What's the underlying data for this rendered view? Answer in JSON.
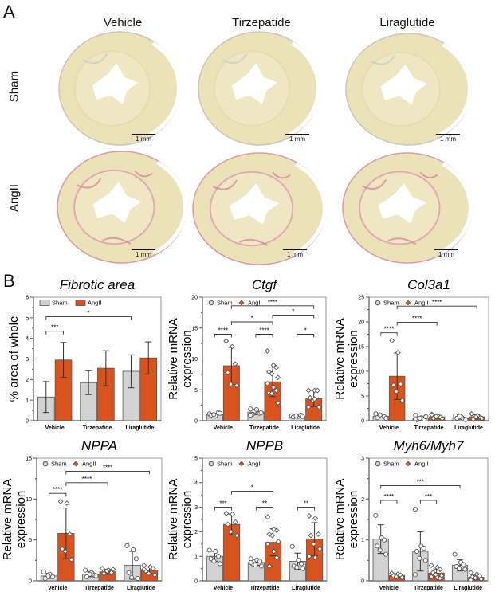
{
  "panel_a": {
    "label": "A",
    "columns": [
      "Vehicle",
      "Tirzepatide",
      "Liraglutide"
    ],
    "rows": [
      "Sham",
      "AngII"
    ],
    "scale_bar": "1 mm"
  },
  "panel_b": {
    "label": "B"
  },
  "colors": {
    "sham": "#d2d2d2",
    "angii": "#d9531e",
    "axis": "#555555"
  },
  "chart_data": [
    {
      "type": "bar",
      "title": "Fibrotic area",
      "ylabel": "% area of whole",
      "categories": [
        "Vehicle",
        "Tirzepatide",
        "Liraglutide"
      ],
      "legend": [
        "Sham",
        "AngII"
      ],
      "legend_placement": "top-left",
      "marker": "square",
      "ylim": [
        0,
        6
      ],
      "yticks": [
        "0",
        "1",
        "2",
        "3",
        "4",
        "5",
        "6"
      ],
      "series": [
        {
          "name": "Sham",
          "values": [
            1.15,
            1.85,
            2.4
          ],
          "sd": [
            0.75,
            0.58,
            0.8
          ],
          "points": [
            [],
            [],
            []
          ]
        },
        {
          "name": "AngII",
          "values": [
            2.95,
            2.55,
            3.05
          ],
          "sd": [
            0.85,
            0.85,
            0.78
          ],
          "points": [
            [],
            [],
            []
          ]
        }
      ],
      "brackets": [
        {
          "bars": [
            0,
            1
          ],
          "y": 4.35,
          "label": "***"
        },
        {
          "bars": [
            0,
            4
          ],
          "y": 5.05,
          "label": "*"
        }
      ]
    },
    {
      "type": "bar",
      "title": "Ctgf",
      "ylabel": "Relative mRNA expression",
      "categories": [
        "Vehicle",
        "Tirzepatide",
        "Liraglutide"
      ],
      "legend": [
        "Sham",
        "AngII"
      ],
      "legend_placement": "top-left",
      "marker": "circle",
      "ylim": [
        0,
        20
      ],
      "yticks": [
        "0",
        "5",
        "10",
        "15",
        "20"
      ],
      "series": [
        {
          "name": "Sham",
          "values": [
            1.0,
            1.4,
            0.7
          ],
          "sd": [
            0.2,
            0.4,
            0.15
          ],
          "points": [
            [
              1.1,
              0.8,
              1.3,
              0.9,
              1.0,
              1.2
            ],
            [
              1.9,
              1.5,
              1.2,
              1.0,
              1.6,
              1.3,
              0.9,
              1.8
            ],
            [
              0.8,
              0.7,
              0.9,
              0.6,
              0.8,
              0.7
            ]
          ]
        },
        {
          "name": "AngII",
          "values": [
            8.9,
            6.3,
            3.6
          ],
          "sd": [
            3.0,
            2.4,
            1.3
          ],
          "points": [
            [
              12.9,
              12.0,
              9.2,
              7.8,
              5.9,
              5.7
            ],
            [
              11.3,
              9.0,
              8.6,
              7.9,
              7.6,
              7.0,
              6.0,
              5.4,
              4.9,
              4.5,
              4.4,
              2.9
            ],
            [
              4.9,
              4.9,
              4.9,
              3.7,
              3.3,
              2.2,
              2.2,
              3.5
            ]
          ]
        }
      ],
      "brackets": [
        {
          "bars": [
            0,
            1
          ],
          "y": 14.0,
          "label": "****"
        },
        {
          "bars": [
            2,
            3
          ],
          "y": 14.0,
          "label": "****"
        },
        {
          "bars": [
            4,
            5
          ],
          "y": 14.0,
          "label": "*"
        },
        {
          "bars": [
            1,
            3
          ],
          "y": 16.0,
          "label": "*"
        },
        {
          "bars": [
            3,
            5
          ],
          "y": 17.1,
          "label": "*"
        },
        {
          "bars": [
            1,
            5
          ],
          "y": 18.6,
          "label": "****"
        }
      ]
    },
    {
      "type": "bar",
      "title": "Col3a1",
      "ylabel": "Relative mRNA expression",
      "categories": [
        "Vehicle",
        "Tirzepatide",
        "Liraglutide"
      ],
      "legend": [
        "Sham",
        "AngII"
      ],
      "legend_placement": "top-left",
      "marker": "circle",
      "ylim": [
        0,
        25
      ],
      "yticks": [
        "0",
        "5",
        "10",
        "15",
        "20",
        "25"
      ],
      "series": [
        {
          "name": "Sham",
          "values": [
            0.9,
            0.5,
            0.6
          ],
          "sd": [
            0.3,
            0.3,
            0.3
          ],
          "points": [
            [
              1.4,
              1.0,
              0.8,
              0.6,
              1.2,
              0.5
            ],
            [
              1.1,
              0.6,
              0.3,
              0.2,
              0.5,
              0.8,
              0.4
            ],
            [
              1.0,
              0.7,
              0.3,
              0.5,
              0.9,
              0.2
            ]
          ]
        },
        {
          "name": "AngII",
          "values": [
            9.0,
            0.8,
            0.8
          ],
          "sd": [
            4.7,
            0.35,
            0.4
          ],
          "points": [
            [
              16.2,
              13.8,
              7.4,
              7.2,
              5.9,
              4.1
            ],
            [
              1.3,
              1.0,
              0.7,
              0.5,
              0.9,
              0.4,
              1.2
            ],
            [
              1.4,
              1.0,
              0.6,
              0.3,
              0.8,
              0.5
            ]
          ]
        }
      ],
      "brackets": [
        {
          "bars": [
            0,
            1
          ],
          "y": 17.8,
          "label": "****"
        },
        {
          "bars": [
            1,
            3
          ],
          "y": 19.9,
          "label": "****"
        },
        {
          "bars": [
            1,
            5
          ],
          "y": 23.2,
          "label": "****"
        }
      ]
    },
    {
      "type": "bar",
      "title": "NPPA",
      "ylabel": "Relative mRNA expression",
      "categories": [
        "Vehicle",
        "Tirzepatide",
        "Liraglutide"
      ],
      "legend": [
        "Sham",
        "AngII"
      ],
      "legend_placement": "top-left",
      "marker": "circle",
      "ylim": [
        0,
        15
      ],
      "yticks": [
        "0",
        "5",
        "10",
        "15"
      ],
      "series": [
        {
          "name": "Sham",
          "values": [
            0.6,
            0.8,
            1.9
          ],
          "sd": [
            0.3,
            0.3,
            1.7
          ],
          "points": [
            [
              1.1,
              0.8,
              0.5,
              0.3,
              0.6
            ],
            [
              1.3,
              1.0,
              0.7,
              0.5,
              0.8,
              0.6
            ],
            [
              4.3,
              3.8,
              2.7,
              1.0,
              0.4,
              0.3
            ]
          ]
        },
        {
          "name": "AngII",
          "values": [
            5.8,
            1.1,
            1.3
          ],
          "sd": [
            3.1,
            0.3,
            0.4
          ],
          "points": [
            [
              9.7,
              9.5,
              5.7,
              3.9,
              3.6,
              2.6
            ],
            [
              1.5,
              1.3,
              1.0,
              0.9,
              1.2,
              1.4
            ],
            [
              1.9,
              1.7,
              1.5,
              1.2,
              0.9,
              0.7,
              1.4
            ]
          ]
        }
      ],
      "brackets": [
        {
          "bars": [
            0,
            1
          ],
          "y": 10.7,
          "label": "****"
        },
        {
          "bars": [
            1,
            3
          ],
          "y": 12.0,
          "label": "****"
        },
        {
          "bars": [
            1,
            5
          ],
          "y": 13.4,
          "label": "****"
        }
      ]
    },
    {
      "type": "bar",
      "title": "NPPB",
      "ylabel": "Relative mRNA expression",
      "categories": [
        "Vehicle",
        "Tirzepatide",
        "Liraglutide"
      ],
      "legend": [
        "Sham",
        "AngII"
      ],
      "legend_placement": "top-left",
      "marker": "circle",
      "ylim": [
        0,
        5
      ],
      "yticks": [
        "0",
        "1",
        "2",
        "3",
        "4",
        "5"
      ],
      "series": [
        {
          "name": "Sham",
          "values": [
            1.0,
            0.75,
            0.8
          ],
          "sd": [
            0.2,
            0.12,
            0.33
          ],
          "points": [
            [
              1.25,
              1.2,
              1.0,
              0.9,
              0.8,
              0.7
            ],
            [
              0.9,
              0.85,
              0.8,
              0.7,
              0.65,
              0.6,
              0.75
            ],
            [
              1.4,
              0.85,
              0.7,
              0.6,
              0.55,
              0.5
            ]
          ]
        },
        {
          "name": "AngII",
          "values": [
            2.3,
            1.57,
            1.7
          ],
          "sd": [
            0.42,
            0.55,
            0.67
          ],
          "points": [
            [
              2.75,
              2.72,
              2.4,
              2.3,
              2.0,
              1.85
            ],
            [
              2.6,
              2.1,
              2.05,
              1.9,
              1.85,
              1.6,
              1.5,
              1.2,
              0.95,
              0.6
            ],
            [
              2.65,
              2.55,
              1.9,
              1.85,
              1.5,
              1.3,
              1.0,
              0.95
            ]
          ]
        }
      ],
      "brackets": [
        {
          "bars": [
            0,
            1
          ],
          "y": 3.0,
          "label": "***"
        },
        {
          "bars": [
            2,
            3
          ],
          "y": 3.0,
          "label": "**"
        },
        {
          "bars": [
            4,
            5
          ],
          "y": 3.0,
          "label": "**"
        },
        {
          "bars": [
            1,
            3
          ],
          "y": 3.65,
          "label": "*"
        }
      ]
    },
    {
      "type": "bar",
      "title": "Myh6/Myh7",
      "ylabel": "Relative mRNA expression",
      "categories": [
        "Vehicle",
        "Tirzepatide",
        "Liraglutide"
      ],
      "legend": [
        "Sham",
        "AngII"
      ],
      "legend_placement": "top-left",
      "marker": "circle",
      "ylim": [
        0,
        3
      ],
      "yticks": [
        "0",
        "1",
        "2",
        "3"
      ],
      "series": [
        {
          "name": "Sham",
          "values": [
            1.02,
            0.72,
            0.38
          ],
          "sd": [
            0.35,
            0.48,
            0.14
          ],
          "points": [
            [
              1.6,
              1.05,
              1.0,
              0.85,
              0.75,
              0.65
            ],
            [
              1.75,
              0.85,
              0.8,
              0.72,
              0.55,
              0.5,
              0.15
            ],
            [
              0.65,
              0.45,
              0.4,
              0.35,
              0.3,
              0.28
            ]
          ]
        },
        {
          "name": "AngII",
          "values": [
            0.13,
            0.19,
            0.09
          ],
          "sd": [
            0.04,
            0.1,
            0.05
          ],
          "points": [
            [
              0.18,
              0.16,
              0.14,
              0.12,
              0.1,
              0.08
            ],
            [
              0.38,
              0.33,
              0.28,
              0.2,
              0.15,
              0.12,
              0.1,
              0.08,
              0.06
            ],
            [
              0.2,
              0.16,
              0.12,
              0.1,
              0.07,
              0.04,
              0.02
            ]
          ]
        }
      ],
      "brackets": [
        {
          "bars": [
            0,
            1
          ],
          "y": 1.97,
          "label": "****"
        },
        {
          "bars": [
            2,
            3
          ],
          "y": 1.97,
          "label": "***"
        },
        {
          "bars": [
            0,
            4
          ],
          "y": 2.33,
          "label": "***"
        }
      ]
    }
  ]
}
